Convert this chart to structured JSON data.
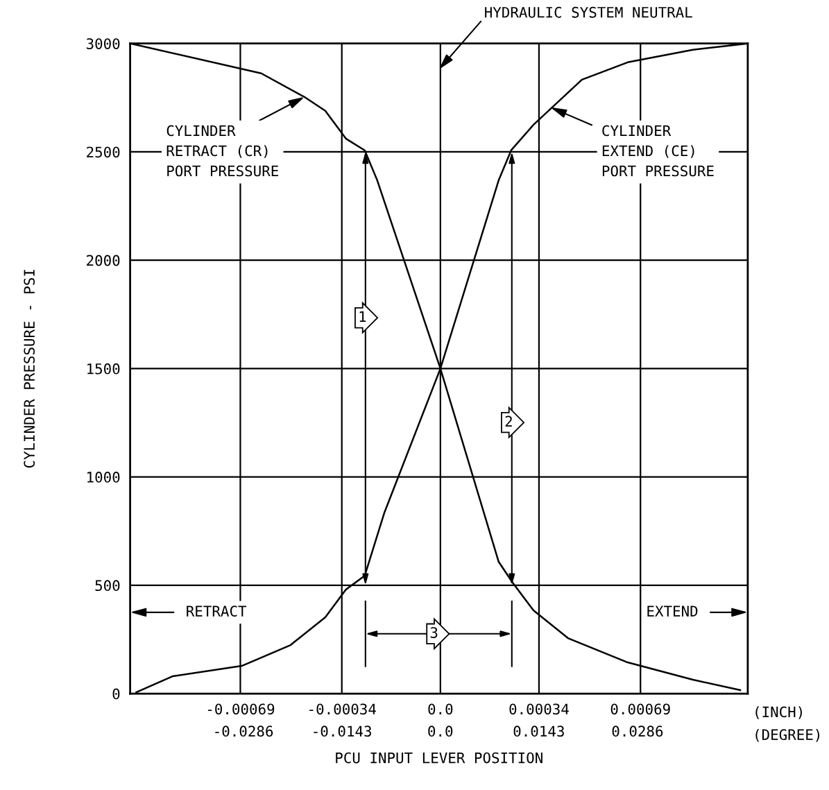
{
  "chart_data": {
    "type": "line",
    "xlabel": "PCU INPUT LEVER POSITION",
    "ylabel": "CYLINDER PRESSURE - PSI",
    "xlim": [
      -0.00107,
      0.00106
    ],
    "ylim": [
      0,
      3000
    ],
    "xticks": [
      -0.00069,
      -0.00034,
      {
        "value": 0,
        "label": "0.0"
      },
      0.00034,
      0.00069
    ],
    "x2lim": [
      -0.045,
      0.0446
    ],
    "x2ticks": [
      -0.0286,
      -0.0143,
      {
        "value": 0,
        "label": "0.0"
      },
      0.0143,
      0.0286
    ],
    "yticks": [
      0,
      500,
      1000,
      1500,
      2000,
      2500,
      3000
    ],
    "grid": true,
    "marker": "none",
    "line_style": "solid",
    "series": [
      {
        "color": "#000000",
        "x": [
          -0.00107,
          -0.000618,
          -0.000469,
          -0.000397,
          -0.000326,
          -0.000261,
          -0.000218,
          0,
          0.000201,
          0.000249,
          0.000321,
          0.00044,
          0.000646,
          0.000871,
          0.001034
        ],
        "values": [
          3000,
          2862,
          2753,
          2689,
          2561,
          2507,
          2369,
          1500,
          608,
          512,
          384,
          256,
          144,
          64,
          16
        ]
      },
      {
        "color": "#000000",
        "x": [
          -0.001049,
          -0.000924,
          -0.000685,
          -0.000517,
          -0.000397,
          -0.000326,
          -0.000261,
          -0.000194,
          0,
          0.000201,
          0.000244,
          0.000321,
          0.000488,
          0.000646,
          0.000871,
          0.00106
        ],
        "values": [
          6,
          80,
          128,
          224,
          352,
          480,
          544,
          832,
          1500,
          2369,
          2507,
          2625,
          2833,
          2913,
          2971,
          3000
        ]
      }
    ],
    "annotations": [
      "HYDRAULIC SYSTEM NEUTRAL",
      {
        "text": "CYLINDER\nRETRACT (CR)\nPORT PRESSURE",
        "x": -0.000469,
        "y": 2753
      },
      {
        "text": "CYLINDER\nEXTEND (CE)\nPORT PRESSURE",
        "x": 0.00038,
        "y": 2705
      },
      "1",
      "2",
      "RETRACT",
      "EXTEND",
      "3",
      "(INCH)",
      "(DEGREE)"
    ]
  }
}
